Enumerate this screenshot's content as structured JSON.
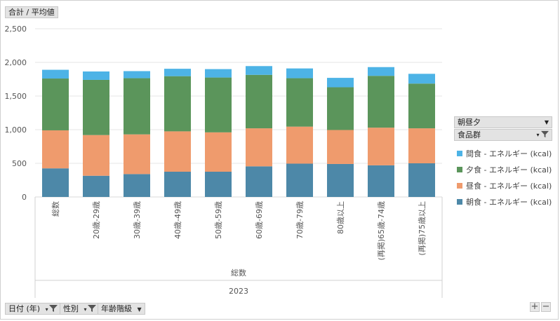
{
  "value_button": {
    "label": "合計 / 平均値"
  },
  "legend": {
    "header1": "朝昼夕",
    "header2": "食品群",
    "items": [
      {
        "label": "間食 - エネルギー (kcal)",
        "color": "#4db3e6"
      },
      {
        "label": "夕食 - エネルギー (kcal)",
        "color": "#5b955b"
      },
      {
        "label": "昼食 - エネルギー (kcal)",
        "color": "#ef9b6d"
      },
      {
        "label": "朝食 - エネルギー (kcal)",
        "color": "#4d88a8"
      }
    ]
  },
  "filters": {
    "date": "日付 (年)",
    "gender": "性別",
    "age": "年齢階級"
  },
  "zoom": {
    "plus": "+",
    "minus": "−"
  },
  "chart_data": {
    "type": "bar",
    "stacked": true,
    "categories": [
      "総数",
      "20歳-29歳",
      "30歳-39歳",
      "40歳-49歳",
      "50歳-59歳",
      "60歳-69歳",
      "70歳-79歳",
      "80歳以上",
      "(再掲)65歳-74歳",
      "(再掲)75歳以上"
    ],
    "group_label": "総数",
    "year_label": "2023",
    "series": [
      {
        "name": "朝食 - エネルギー (kcal)",
        "color": "#4d88a8",
        "values": [
          425,
          315,
          340,
          375,
          375,
          455,
          495,
          490,
          470,
          500
        ]
      },
      {
        "name": "昼食 - エネルギー (kcal)",
        "color": "#ef9b6d",
        "values": [
          565,
          605,
          590,
          600,
          585,
          565,
          550,
          505,
          560,
          520
        ]
      },
      {
        "name": "夕食 - エネルギー (kcal)",
        "color": "#5b955b",
        "values": [
          770,
          820,
          835,
          820,
          815,
          795,
          720,
          635,
          770,
          665
        ]
      },
      {
        "name": "間食 - エネルギー (kcal)",
        "color": "#4db3e6",
        "values": [
          130,
          125,
          105,
          110,
          125,
          130,
          145,
          140,
          130,
          145
        ]
      }
    ],
    "ylim": [
      0,
      2500
    ],
    "yticks": [
      "0",
      "500",
      "1,000",
      "1,500",
      "2,000",
      "2,500"
    ],
    "ytick_values": [
      0,
      500,
      1000,
      1500,
      2000,
      2500
    ],
    "grid": true,
    "legend_position": "right"
  }
}
